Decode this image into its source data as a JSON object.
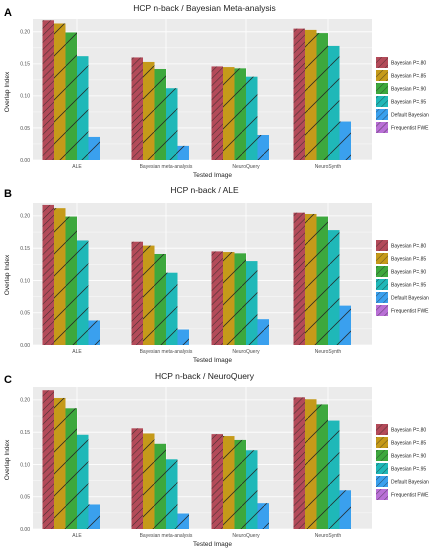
{
  "colors": {
    "panel_bg": "#ebebeb",
    "grid": "#ffffff",
    "series": [
      "#b34a59",
      "#c59a1a",
      "#3da83d",
      "#1fb8b8",
      "#3aa0ee",
      "#b96fd6"
    ]
  },
  "chart_data": [
    {
      "type": "bar",
      "panel_letter": "A",
      "title": "HCP n-back / Bayesian Meta-analysis",
      "xlabel": "Tested Image",
      "ylabel": "Overlap Index",
      "ylim": [
        0,
        0.22
      ],
      "yticks": [
        "0.00",
        "0.05",
        "0.10",
        "0.15",
        "0.20"
      ],
      "grid": true,
      "legend_position": "right",
      "categories": [
        "ALE",
        "Bayesian meta-analysis",
        "NeuroQuery",
        "NeuroSynth"
      ],
      "series": [
        {
          "name": "Bayesian P=.80",
          "values": [
            0.218,
            0.16,
            0.146,
            0.205
          ]
        },
        {
          "name": "Bayesian P=.85",
          "values": [
            0.213,
            0.153,
            0.145,
            0.203
          ]
        },
        {
          "name": "Bayesian P=.90",
          "values": [
            0.199,
            0.142,
            0.143,
            0.198
          ]
        },
        {
          "name": "Bayesian P=.95",
          "values": [
            0.162,
            0.112,
            0.13,
            0.178
          ]
        },
        {
          "name": "Default Bayesian",
          "values": [
            0.036,
            0.022,
            0.039,
            0.06
          ]
        },
        {
          "name": "Frequentist FWE",
          "values": [
            0.0,
            0.0,
            0.0,
            0.0
          ]
        }
      ]
    },
    {
      "type": "bar",
      "panel_letter": "B",
      "title": "HCP n-back / ALE",
      "xlabel": "Tested Image",
      "ylabel": "Overlap Index",
      "ylim": [
        0,
        0.22
      ],
      "yticks": [
        "0.00",
        "0.05",
        "0.10",
        "0.15",
        "0.20"
      ],
      "grid": true,
      "legend_position": "right",
      "categories": [
        "ALE",
        "Bayesian meta-analysis",
        "NeuroQuery",
        "NeuroSynth"
      ],
      "series": [
        {
          "name": "Bayesian P=.80",
          "values": [
            0.217,
            0.16,
            0.145,
            0.205
          ]
        },
        {
          "name": "Bayesian P=.85",
          "values": [
            0.212,
            0.154,
            0.144,
            0.203
          ]
        },
        {
          "name": "Bayesian P=.90",
          "values": [
            0.199,
            0.141,
            0.142,
            0.199
          ]
        },
        {
          "name": "Bayesian P=.95",
          "values": [
            0.162,
            0.112,
            0.13,
            0.178
          ]
        },
        {
          "name": "Default Bayesian",
          "values": [
            0.038,
            0.024,
            0.04,
            0.061
          ]
        },
        {
          "name": "Frequentist FWE",
          "values": [
            0.0,
            0.0,
            0.0,
            0.0
          ]
        }
      ]
    },
    {
      "type": "bar",
      "panel_letter": "C",
      "title": "HCP n-back / NeuroQuery",
      "xlabel": "Tested Image",
      "ylabel": "Overlap Index",
      "ylim": [
        0,
        0.22
      ],
      "yticks": [
        "0.00",
        "0.05",
        "0.10",
        "0.15",
        "0.20"
      ],
      "grid": true,
      "legend_position": "right",
      "categories": [
        "ALE",
        "Bayesian meta-analysis",
        "NeuroQuery",
        "NeuroSynth"
      ],
      "series": [
        {
          "name": "Bayesian P=.80",
          "values": [
            0.215,
            0.156,
            0.147,
            0.204
          ]
        },
        {
          "name": "Bayesian P=.85",
          "values": [
            0.203,
            0.148,
            0.144,
            0.201
          ]
        },
        {
          "name": "Bayesian P=.90",
          "values": [
            0.187,
            0.132,
            0.138,
            0.193
          ]
        },
        {
          "name": "Bayesian P=.95",
          "values": [
            0.146,
            0.108,
            0.122,
            0.168
          ]
        },
        {
          "name": "Default Bayesian",
          "values": [
            0.038,
            0.024,
            0.04,
            0.06
          ]
        },
        {
          "name": "Frequentist FWE",
          "values": [
            0.0,
            0.0,
            0.0,
            0.0
          ]
        }
      ]
    }
  ]
}
